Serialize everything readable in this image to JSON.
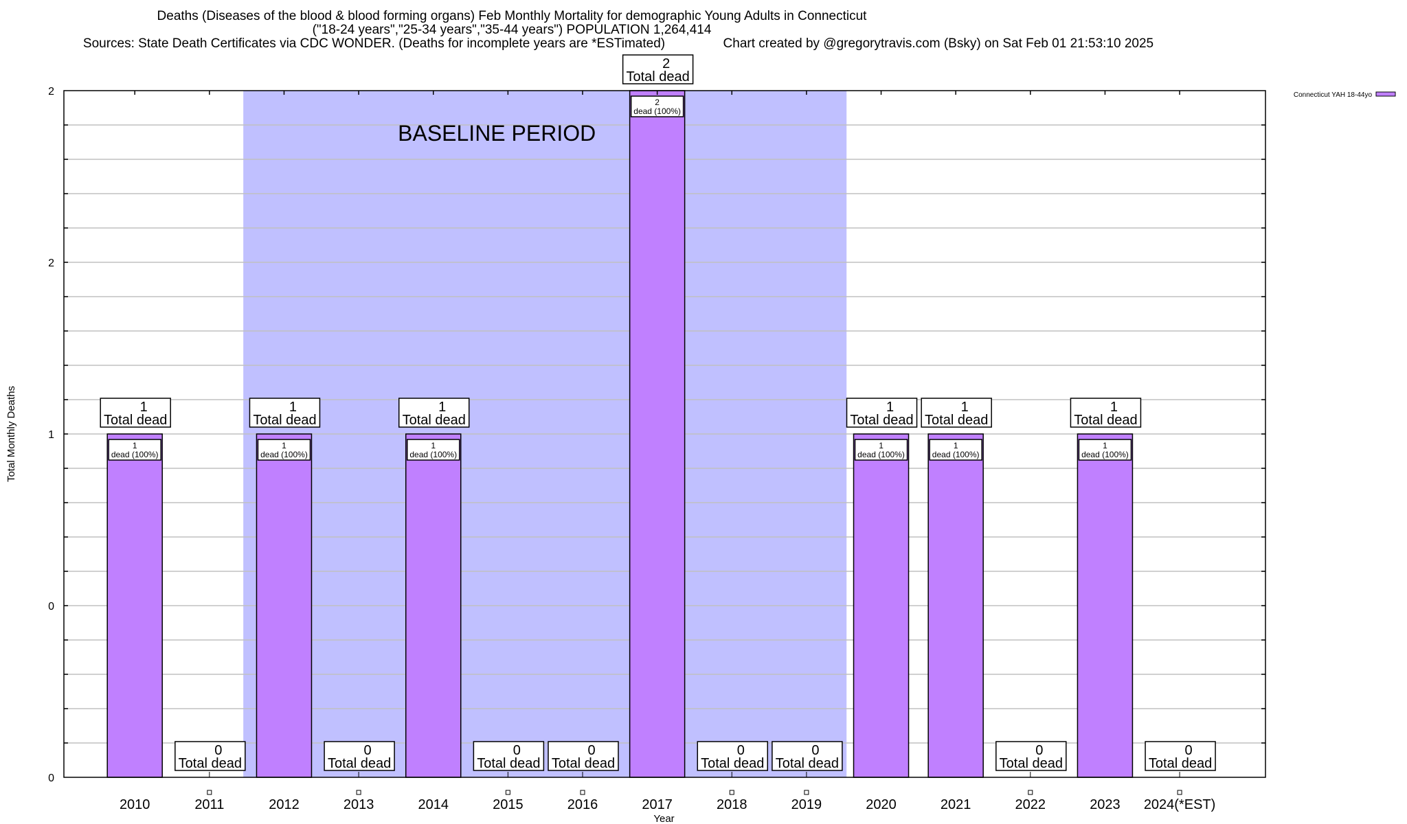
{
  "chart_data": {
    "type": "bar",
    "title_lines": [
      "Deaths (Diseases of the blood & blood forming organs) Feb Monthly Mortality for demographic Young Adults in Connecticut",
      "(\"18-24 years\",\"25-34 years\",\"35-44 years\") POPULATION 1,264,414",
      "Sources: State Death Certificates via CDC WONDER. (Deaths for incomplete years are *ESTimated)                Chart created by @gregorytravis.com (Bsky) on Sat Feb 01 21:53:10 2025"
    ],
    "xlabel": "Year",
    "ylabel": "Total Monthly Deaths",
    "ylim": [
      0,
      2
    ],
    "ytick_values": [
      0,
      0.5,
      1,
      1.5,
      2
    ],
    "ytick_labels": [
      "0",
      "0",
      "1",
      "2",
      "2"
    ],
    "grid": true,
    "categories": [
      "2010",
      "2011",
      "2012",
      "2013",
      "2014",
      "2015",
      "2016",
      "2017",
      "2018",
      "2019",
      "2020",
      "2021",
      "2022",
      "2023",
      "2024(*EST)"
    ],
    "series": [
      {
        "name": "Connecticut YAH 18-44yo",
        "color": "#c080ff",
        "values": [
          1,
          0,
          1,
          0,
          1,
          0,
          0,
          2,
          0,
          0,
          1,
          1,
          0,
          1,
          0
        ]
      }
    ],
    "total_labels": [
      "1\nTotal dead",
      "0\nTotal dead",
      "1\nTotal dead",
      "0\nTotal dead",
      "1\nTotal dead",
      "0\nTotal dead",
      "0\nTotal dead",
      "2\nTotal dead",
      "0\nTotal dead",
      "0\nTotal dead",
      "1\nTotal dead",
      "1\nTotal dead",
      "0\nTotal dead",
      "1\nTotal dead",
      "0\nTotal dead"
    ],
    "total_word": "Total dead",
    "bar_label_suffix": "dead (100%)",
    "annotation": {
      "text": "BASELINE PERIOD",
      "span": [
        "2012",
        "2019"
      ],
      "color": "#c0c0ff"
    },
    "legend": {
      "position": "top-right",
      "entries": [
        "Connecticut YAH 18-44yo"
      ]
    }
  }
}
